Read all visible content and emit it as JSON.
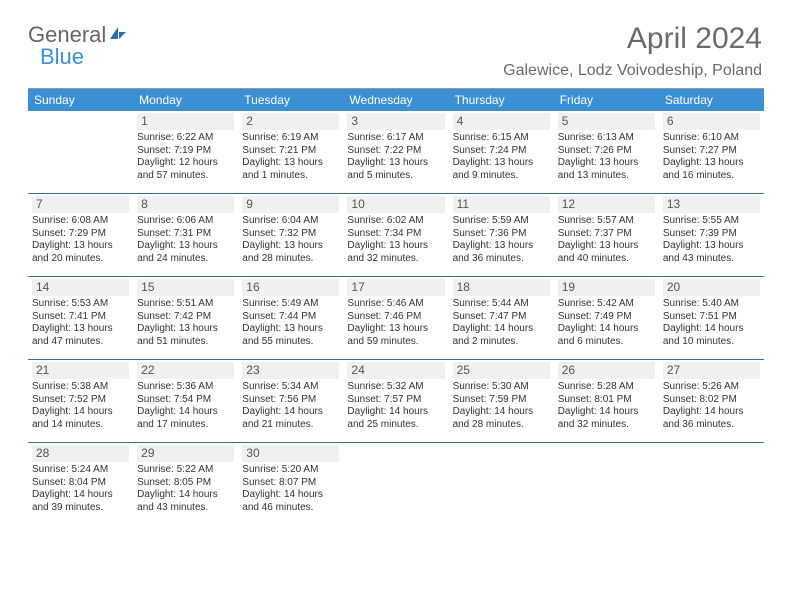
{
  "brand": {
    "part1": "General",
    "part2": "Blue"
  },
  "title": "April 2024",
  "location": "Galewice, Lodz Voivodeship, Poland",
  "calendar": {
    "day_labels": [
      "Sunday",
      "Monday",
      "Tuesday",
      "Wednesday",
      "Thursday",
      "Friday",
      "Saturday"
    ],
    "header_bg": "#3b8fd4",
    "header_fg": "#ffffff",
    "border_color": "#3b6e9a",
    "daynum_bg": "#eef0f1",
    "text_color": "#333333",
    "weeks": [
      [
        {
          "empty": true
        },
        {
          "n": "1",
          "sr": "Sunrise: 6:22 AM",
          "ss": "Sunset: 7:19 PM",
          "dl": "Daylight: 12 hours and 57 minutes."
        },
        {
          "n": "2",
          "sr": "Sunrise: 6:19 AM",
          "ss": "Sunset: 7:21 PM",
          "dl": "Daylight: 13 hours and 1 minutes."
        },
        {
          "n": "3",
          "sr": "Sunrise: 6:17 AM",
          "ss": "Sunset: 7:22 PM",
          "dl": "Daylight: 13 hours and 5 minutes."
        },
        {
          "n": "4",
          "sr": "Sunrise: 6:15 AM",
          "ss": "Sunset: 7:24 PM",
          "dl": "Daylight: 13 hours and 9 minutes."
        },
        {
          "n": "5",
          "sr": "Sunrise: 6:13 AM",
          "ss": "Sunset: 7:26 PM",
          "dl": "Daylight: 13 hours and 13 minutes."
        },
        {
          "n": "6",
          "sr": "Sunrise: 6:10 AM",
          "ss": "Sunset: 7:27 PM",
          "dl": "Daylight: 13 hours and 16 minutes."
        }
      ],
      [
        {
          "n": "7",
          "sr": "Sunrise: 6:08 AM",
          "ss": "Sunset: 7:29 PM",
          "dl": "Daylight: 13 hours and 20 minutes."
        },
        {
          "n": "8",
          "sr": "Sunrise: 6:06 AM",
          "ss": "Sunset: 7:31 PM",
          "dl": "Daylight: 13 hours and 24 minutes."
        },
        {
          "n": "9",
          "sr": "Sunrise: 6:04 AM",
          "ss": "Sunset: 7:32 PM",
          "dl": "Daylight: 13 hours and 28 minutes."
        },
        {
          "n": "10",
          "sr": "Sunrise: 6:02 AM",
          "ss": "Sunset: 7:34 PM",
          "dl": "Daylight: 13 hours and 32 minutes."
        },
        {
          "n": "11",
          "sr": "Sunrise: 5:59 AM",
          "ss": "Sunset: 7:36 PM",
          "dl": "Daylight: 13 hours and 36 minutes."
        },
        {
          "n": "12",
          "sr": "Sunrise: 5:57 AM",
          "ss": "Sunset: 7:37 PM",
          "dl": "Daylight: 13 hours and 40 minutes."
        },
        {
          "n": "13",
          "sr": "Sunrise: 5:55 AM",
          "ss": "Sunset: 7:39 PM",
          "dl": "Daylight: 13 hours and 43 minutes."
        }
      ],
      [
        {
          "n": "14",
          "sr": "Sunrise: 5:53 AM",
          "ss": "Sunset: 7:41 PM",
          "dl": "Daylight: 13 hours and 47 minutes."
        },
        {
          "n": "15",
          "sr": "Sunrise: 5:51 AM",
          "ss": "Sunset: 7:42 PM",
          "dl": "Daylight: 13 hours and 51 minutes."
        },
        {
          "n": "16",
          "sr": "Sunrise: 5:49 AM",
          "ss": "Sunset: 7:44 PM",
          "dl": "Daylight: 13 hours and 55 minutes."
        },
        {
          "n": "17",
          "sr": "Sunrise: 5:46 AM",
          "ss": "Sunset: 7:46 PM",
          "dl": "Daylight: 13 hours and 59 minutes."
        },
        {
          "n": "18",
          "sr": "Sunrise: 5:44 AM",
          "ss": "Sunset: 7:47 PM",
          "dl": "Daylight: 14 hours and 2 minutes."
        },
        {
          "n": "19",
          "sr": "Sunrise: 5:42 AM",
          "ss": "Sunset: 7:49 PM",
          "dl": "Daylight: 14 hours and 6 minutes."
        },
        {
          "n": "20",
          "sr": "Sunrise: 5:40 AM",
          "ss": "Sunset: 7:51 PM",
          "dl": "Daylight: 14 hours and 10 minutes."
        }
      ],
      [
        {
          "n": "21",
          "sr": "Sunrise: 5:38 AM",
          "ss": "Sunset: 7:52 PM",
          "dl": "Daylight: 14 hours and 14 minutes."
        },
        {
          "n": "22",
          "sr": "Sunrise: 5:36 AM",
          "ss": "Sunset: 7:54 PM",
          "dl": "Daylight: 14 hours and 17 minutes."
        },
        {
          "n": "23",
          "sr": "Sunrise: 5:34 AM",
          "ss": "Sunset: 7:56 PM",
          "dl": "Daylight: 14 hours and 21 minutes."
        },
        {
          "n": "24",
          "sr": "Sunrise: 5:32 AM",
          "ss": "Sunset: 7:57 PM",
          "dl": "Daylight: 14 hours and 25 minutes."
        },
        {
          "n": "25",
          "sr": "Sunrise: 5:30 AM",
          "ss": "Sunset: 7:59 PM",
          "dl": "Daylight: 14 hours and 28 minutes."
        },
        {
          "n": "26",
          "sr": "Sunrise: 5:28 AM",
          "ss": "Sunset: 8:01 PM",
          "dl": "Daylight: 14 hours and 32 minutes."
        },
        {
          "n": "27",
          "sr": "Sunrise: 5:26 AM",
          "ss": "Sunset: 8:02 PM",
          "dl": "Daylight: 14 hours and 36 minutes."
        }
      ],
      [
        {
          "n": "28",
          "sr": "Sunrise: 5:24 AM",
          "ss": "Sunset: 8:04 PM",
          "dl": "Daylight: 14 hours and 39 minutes."
        },
        {
          "n": "29",
          "sr": "Sunrise: 5:22 AM",
          "ss": "Sunset: 8:05 PM",
          "dl": "Daylight: 14 hours and 43 minutes."
        },
        {
          "n": "30",
          "sr": "Sunrise: 5:20 AM",
          "ss": "Sunset: 8:07 PM",
          "dl": "Daylight: 14 hours and 46 minutes."
        },
        {
          "empty": true
        },
        {
          "empty": true
        },
        {
          "empty": true
        },
        {
          "empty": true
        }
      ]
    ]
  }
}
